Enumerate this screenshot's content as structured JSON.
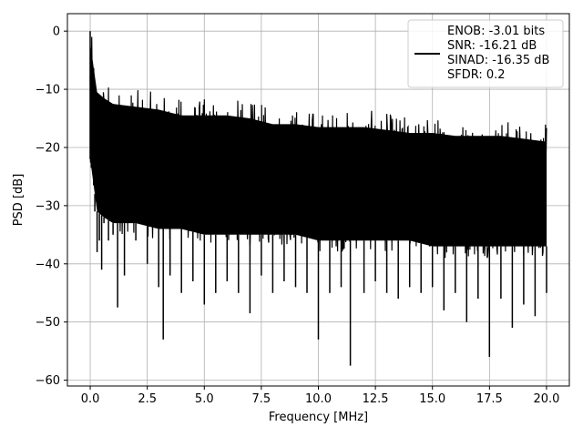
{
  "chart_data": {
    "type": "line",
    "title": "",
    "xlabel": "Frequency [MHz]",
    "ylabel": "PSD [dB]",
    "xlim": [
      -1.0,
      21.0
    ],
    "ylim": [
      -61.0,
      3.0
    ],
    "x_ticks": [
      0.0,
      2.5,
      5.0,
      7.5,
      10.0,
      12.5,
      15.0,
      17.5,
      20.0
    ],
    "x_tick_labels": [
      "0.0",
      "2.5",
      "5.0",
      "7.5",
      "10.0",
      "12.5",
      "15.0",
      "17.5",
      "20.0"
    ],
    "y_ticks": [
      0,
      -10,
      -20,
      -30,
      -40,
      -50,
      -60
    ],
    "y_tick_labels": [
      "0",
      "−10",
      "−20",
      "−30",
      "−40",
      "−50",
      "−60"
    ],
    "grid": true,
    "legend_position": "top-right",
    "series": [
      {
        "name": "",
        "color": "#000000",
        "x": [
          0.0,
          0.02,
          0.05,
          0.1,
          0.15,
          0.2,
          0.3,
          0.4,
          0.5,
          0.6,
          0.8,
          1.0,
          1.2,
          1.5,
          2.0,
          2.5,
          3.0,
          3.2,
          3.5,
          4.0,
          4.5,
          5.0,
          5.5,
          6.0,
          6.5,
          7.0,
          7.5,
          8.0,
          8.5,
          9.0,
          9.5,
          10.0,
          10.5,
          11.0,
          11.4,
          12.0,
          12.5,
          13.0,
          13.5,
          14.0,
          14.5,
          15.0,
          15.5,
          16.0,
          16.5,
          17.0,
          17.5,
          18.0,
          18.5,
          19.0,
          19.5,
          20.0
        ],
        "y": [
          0.0,
          -8.0,
          -14.0,
          -25.0,
          -19.0,
          -31.0,
          -38.0,
          -36.0,
          -41.0,
          -33.0,
          -36.0,
          -35.0,
          -47.5,
          -42.0,
          -36.0,
          -40.0,
          -44.0,
          -53.0,
          -42.0,
          -45.0,
          -43.0,
          -47.0,
          -45.0,
          -43.0,
          -45.0,
          -48.5,
          -42.0,
          -45.0,
          -43.0,
          -44.0,
          -45.0,
          -53.0,
          -45.0,
          -44.0,
          -57.5,
          -45.0,
          -43.0,
          -45.0,
          -46.0,
          -44.0,
          -45.0,
          -44.0,
          -48.0,
          -45.0,
          -50.0,
          -46.0,
          -56.0,
          -46.0,
          -51.0,
          -47.0,
          -49.0,
          -45.0
        ]
      }
    ],
    "noise_band": {
      "upper_x": [
        0.0,
        0.3,
        0.6,
        1.0,
        2.0,
        3.0,
        4.0,
        5.0,
        6.0,
        7.0,
        8.0,
        9.0,
        10.0,
        11.0,
        12.0,
        13.0,
        14.0,
        15.0,
        16.0,
        17.0,
        18.0,
        19.0,
        20.0
      ],
      "upper_y": [
        -2.0,
        -10.5,
        -11.5,
        -12.5,
        -13.0,
        -13.5,
        -14.5,
        -14.5,
        -14.5,
        -15.0,
        -16.0,
        -16.0,
        -16.5,
        -16.5,
        -16.5,
        -17.0,
        -17.5,
        -17.5,
        -18.0,
        -18.0,
        -18.0,
        -18.5,
        -19.0
      ],
      "lower_y": [
        -22.0,
        -31.0,
        -32.0,
        -33.0,
        -33.0,
        -34.0,
        -34.0,
        -35.0,
        -35.0,
        -35.0,
        -35.0,
        -35.0,
        -36.0,
        -36.0,
        -36.0,
        -36.0,
        -36.0,
        -37.0,
        -37.0,
        -37.0,
        -37.0,
        -37.0,
        -37.0
      ]
    },
    "legend": {
      "line_color": "#000000",
      "entries": [
        "ENOB: -3.01 bits",
        "SNR: -16.21 dB",
        "SINAD: -16.35 dB",
        "SFDR: 0.2"
      ]
    }
  }
}
